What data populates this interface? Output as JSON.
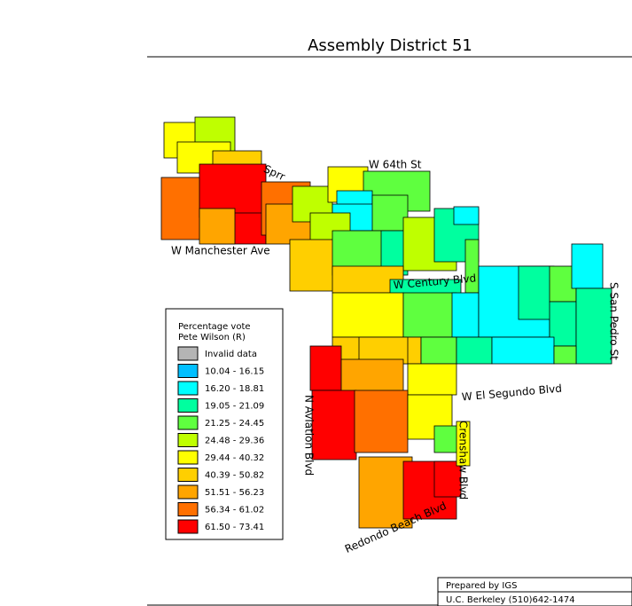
{
  "title": "Assembly District 51",
  "streets": [
    "W 64th St",
    "Sprr",
    "W Manchester Ave",
    "W Century Blvd",
    "S San Pedro St",
    "W El Segundo Blvd",
    "N Aviation Blvd",
    "Crenshaw Blvd",
    "Redondo Beach Blvd"
  ],
  "legend": {
    "title": [
      "Percentage vote",
      "Pete Wilson (R)"
    ],
    "items": [
      {
        "label": "Invalid data",
        "color": "#b4b4b4"
      },
      {
        "label": "10.04 - 16.15",
        "color": "#00bfff"
      },
      {
        "label": "16.20 - 18.81",
        "color": "#00ffff"
      },
      {
        "label": "19.05 - 21.09",
        "color": "#00ff9f"
      },
      {
        "label": "21.25 - 24.45",
        "color": "#5fff3f"
      },
      {
        "label": "24.48 - 29.36",
        "color": "#bfff00"
      },
      {
        "label": "29.44 - 40.32",
        "color": "#ffff00"
      },
      {
        "label": "40.39 - 50.82",
        "color": "#ffcf00"
      },
      {
        "label": "51.51 - 56.23",
        "color": "#ffa500"
      },
      {
        "label": "56.34 - 61.02",
        "color": "#ff7000"
      },
      {
        "label": "61.50 - 73.41",
        "color": "#ff0000"
      }
    ]
  },
  "footer": [
    "Prepared by IGS",
    "U.C. Berkeley (510)642-1474"
  ]
}
